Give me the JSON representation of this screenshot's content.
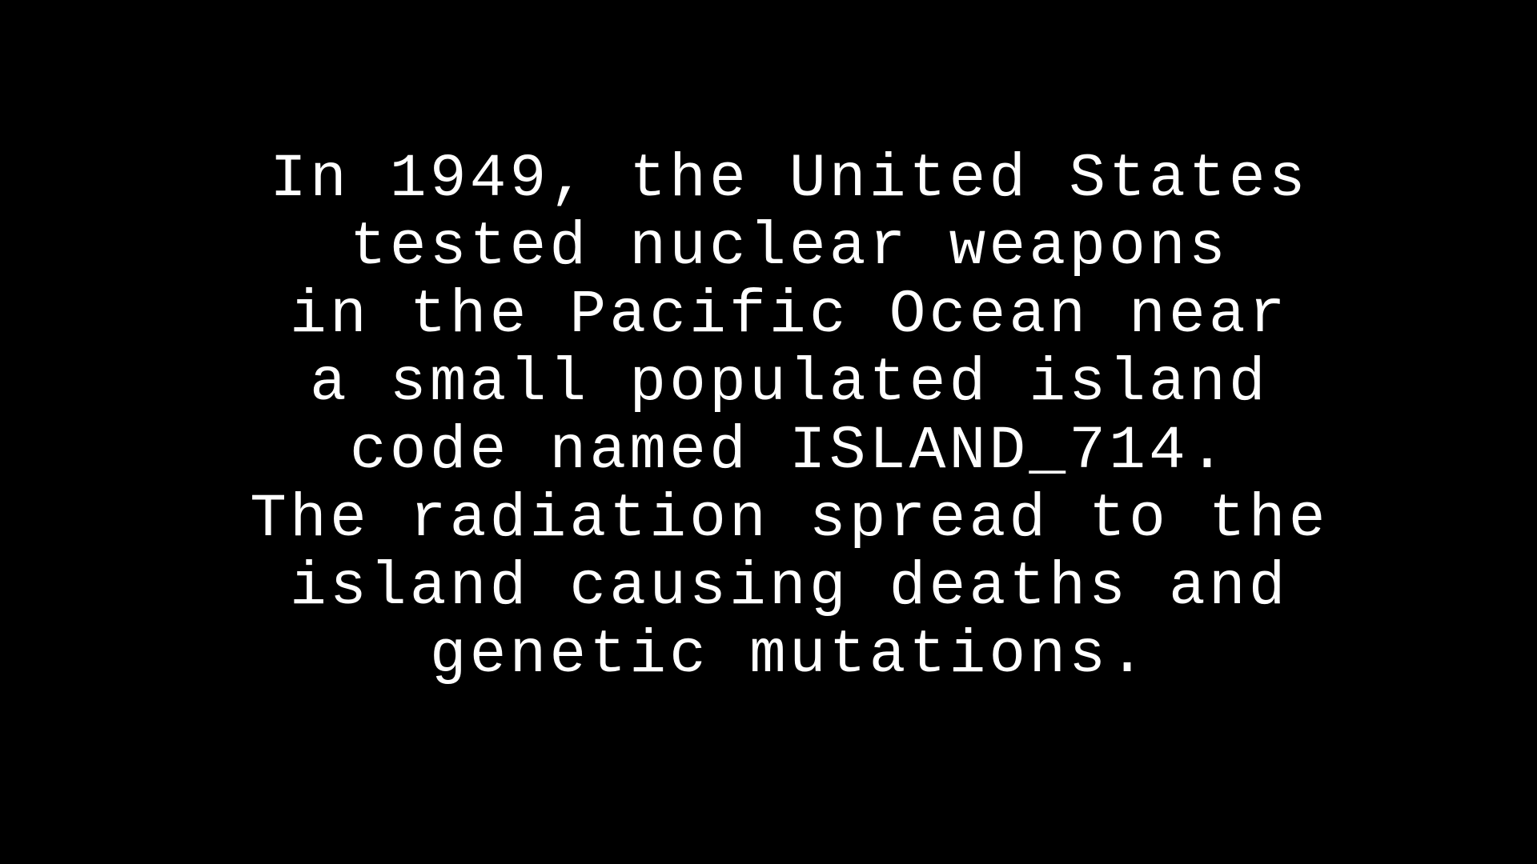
{
  "lines": [
    "In 1949, the United States",
    "tested nuclear weapons",
    "in the Pacific Ocean near",
    "a small populated island",
    "code named ISLAND_714.",
    "The radiation spread to the",
    "island causing deaths and",
    "genetic mutations."
  ]
}
